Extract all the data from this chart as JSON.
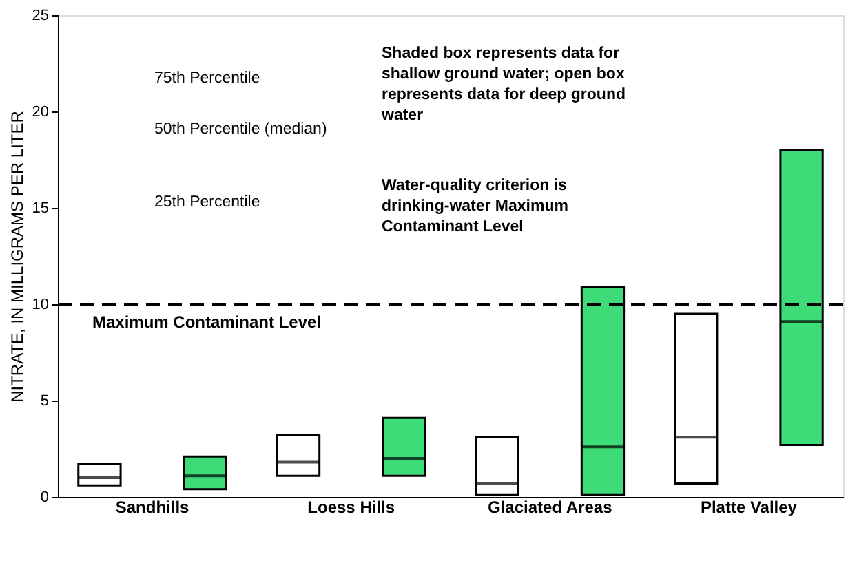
{
  "chart_data": {
    "type": "box",
    "ylabel": "NITRATE, IN MILLIGRAMS PER LITER",
    "categories": [
      "Sandhills",
      "Loess Hills",
      "Glaciated Areas",
      "Platte Valley"
    ],
    "series": [
      {
        "color": "#ffffff",
        "boxes": [
          {
            "low": 0.6,
            "q1": 0.6,
            "median": 1.0,
            "q3": 1.7,
            "high": 1.7
          },
          {
            "low": 1.1,
            "q1": 1.1,
            "median": 1.8,
            "q3": 3.2,
            "high": 3.2
          },
          {
            "low": 0.1,
            "q1": 0.1,
            "median": 0.7,
            "q3": 3.1,
            "high": 3.1
          },
          {
            "low": 0.7,
            "q1": 0.7,
            "median": 3.1,
            "q3": 9.5,
            "high": 9.5
          }
        ]
      },
      {
        "color": "#3ddc78",
        "boxes": [
          {
            "low": 0.4,
            "q1": 0.4,
            "median": 1.1,
            "q3": 2.1,
            "high": 2.1
          },
          {
            "low": 1.1,
            "q1": 1.1,
            "median": 2.0,
            "q3": 4.1,
            "high": 4.1
          },
          {
            "low": 0.1,
            "q1": 0.1,
            "median": 2.6,
            "q3": 10.9,
            "high": 10.9
          },
          {
            "low": 2.7,
            "q1": 2.7,
            "median": 9.1,
            "q3": 18.0,
            "high": 18.0
          }
        ]
      }
    ],
    "ylim": [
      0,
      25
    ],
    "yticks": [
      0,
      5,
      10,
      15,
      20,
      25
    ],
    "grid": false,
    "ref_lines": [
      {
        "axis": "y",
        "value": 10,
        "label": "Maximum Contaminant Level",
        "line_style": "dashed"
      }
    ],
    "annotations": [
      "75th Percentile",
      "50th Percentile  (median)",
      "25th Percentile",
      "Shaded box represents data for shallow ground water; open box represents data for deep ground water",
      "Water-quality criterion is drinking-water Maximum Contaminant Level"
    ]
  }
}
